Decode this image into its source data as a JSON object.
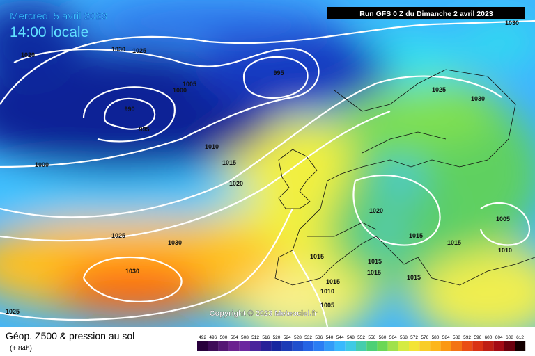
{
  "header": {
    "date": "Mercredi 5 avril 2023",
    "time": "14:00 locale",
    "run": "Run GFS 0 Z du Dimanche 2 avril 2023"
  },
  "copyright": "Copyright © 2023 Meteociel.fr",
  "footer": {
    "title": "Géop. Z500 & pression au sol",
    "subtitle": "(+ 84h)"
  },
  "legend": {
    "labels": [
      492,
      496,
      500,
      504,
      508,
      512,
      516,
      520,
      524,
      528,
      532,
      536,
      540,
      544,
      548,
      552,
      556,
      560,
      564,
      568,
      572,
      576,
      580,
      584,
      588,
      592,
      596,
      600,
      604,
      608,
      612
    ]
  },
  "isobar_labels": [
    1030,
    1020,
    1030,
    1025,
    995,
    1005,
    1000,
    1025,
    1030,
    990,
    995,
    1010,
    1015,
    1000,
    1020,
    1020,
    1005,
    1025,
    1030,
    1015,
    1015,
    1010,
    1015,
    1015,
    1015,
    1030,
    1015,
    1015,
    1010,
    1005,
    1025
  ]
}
